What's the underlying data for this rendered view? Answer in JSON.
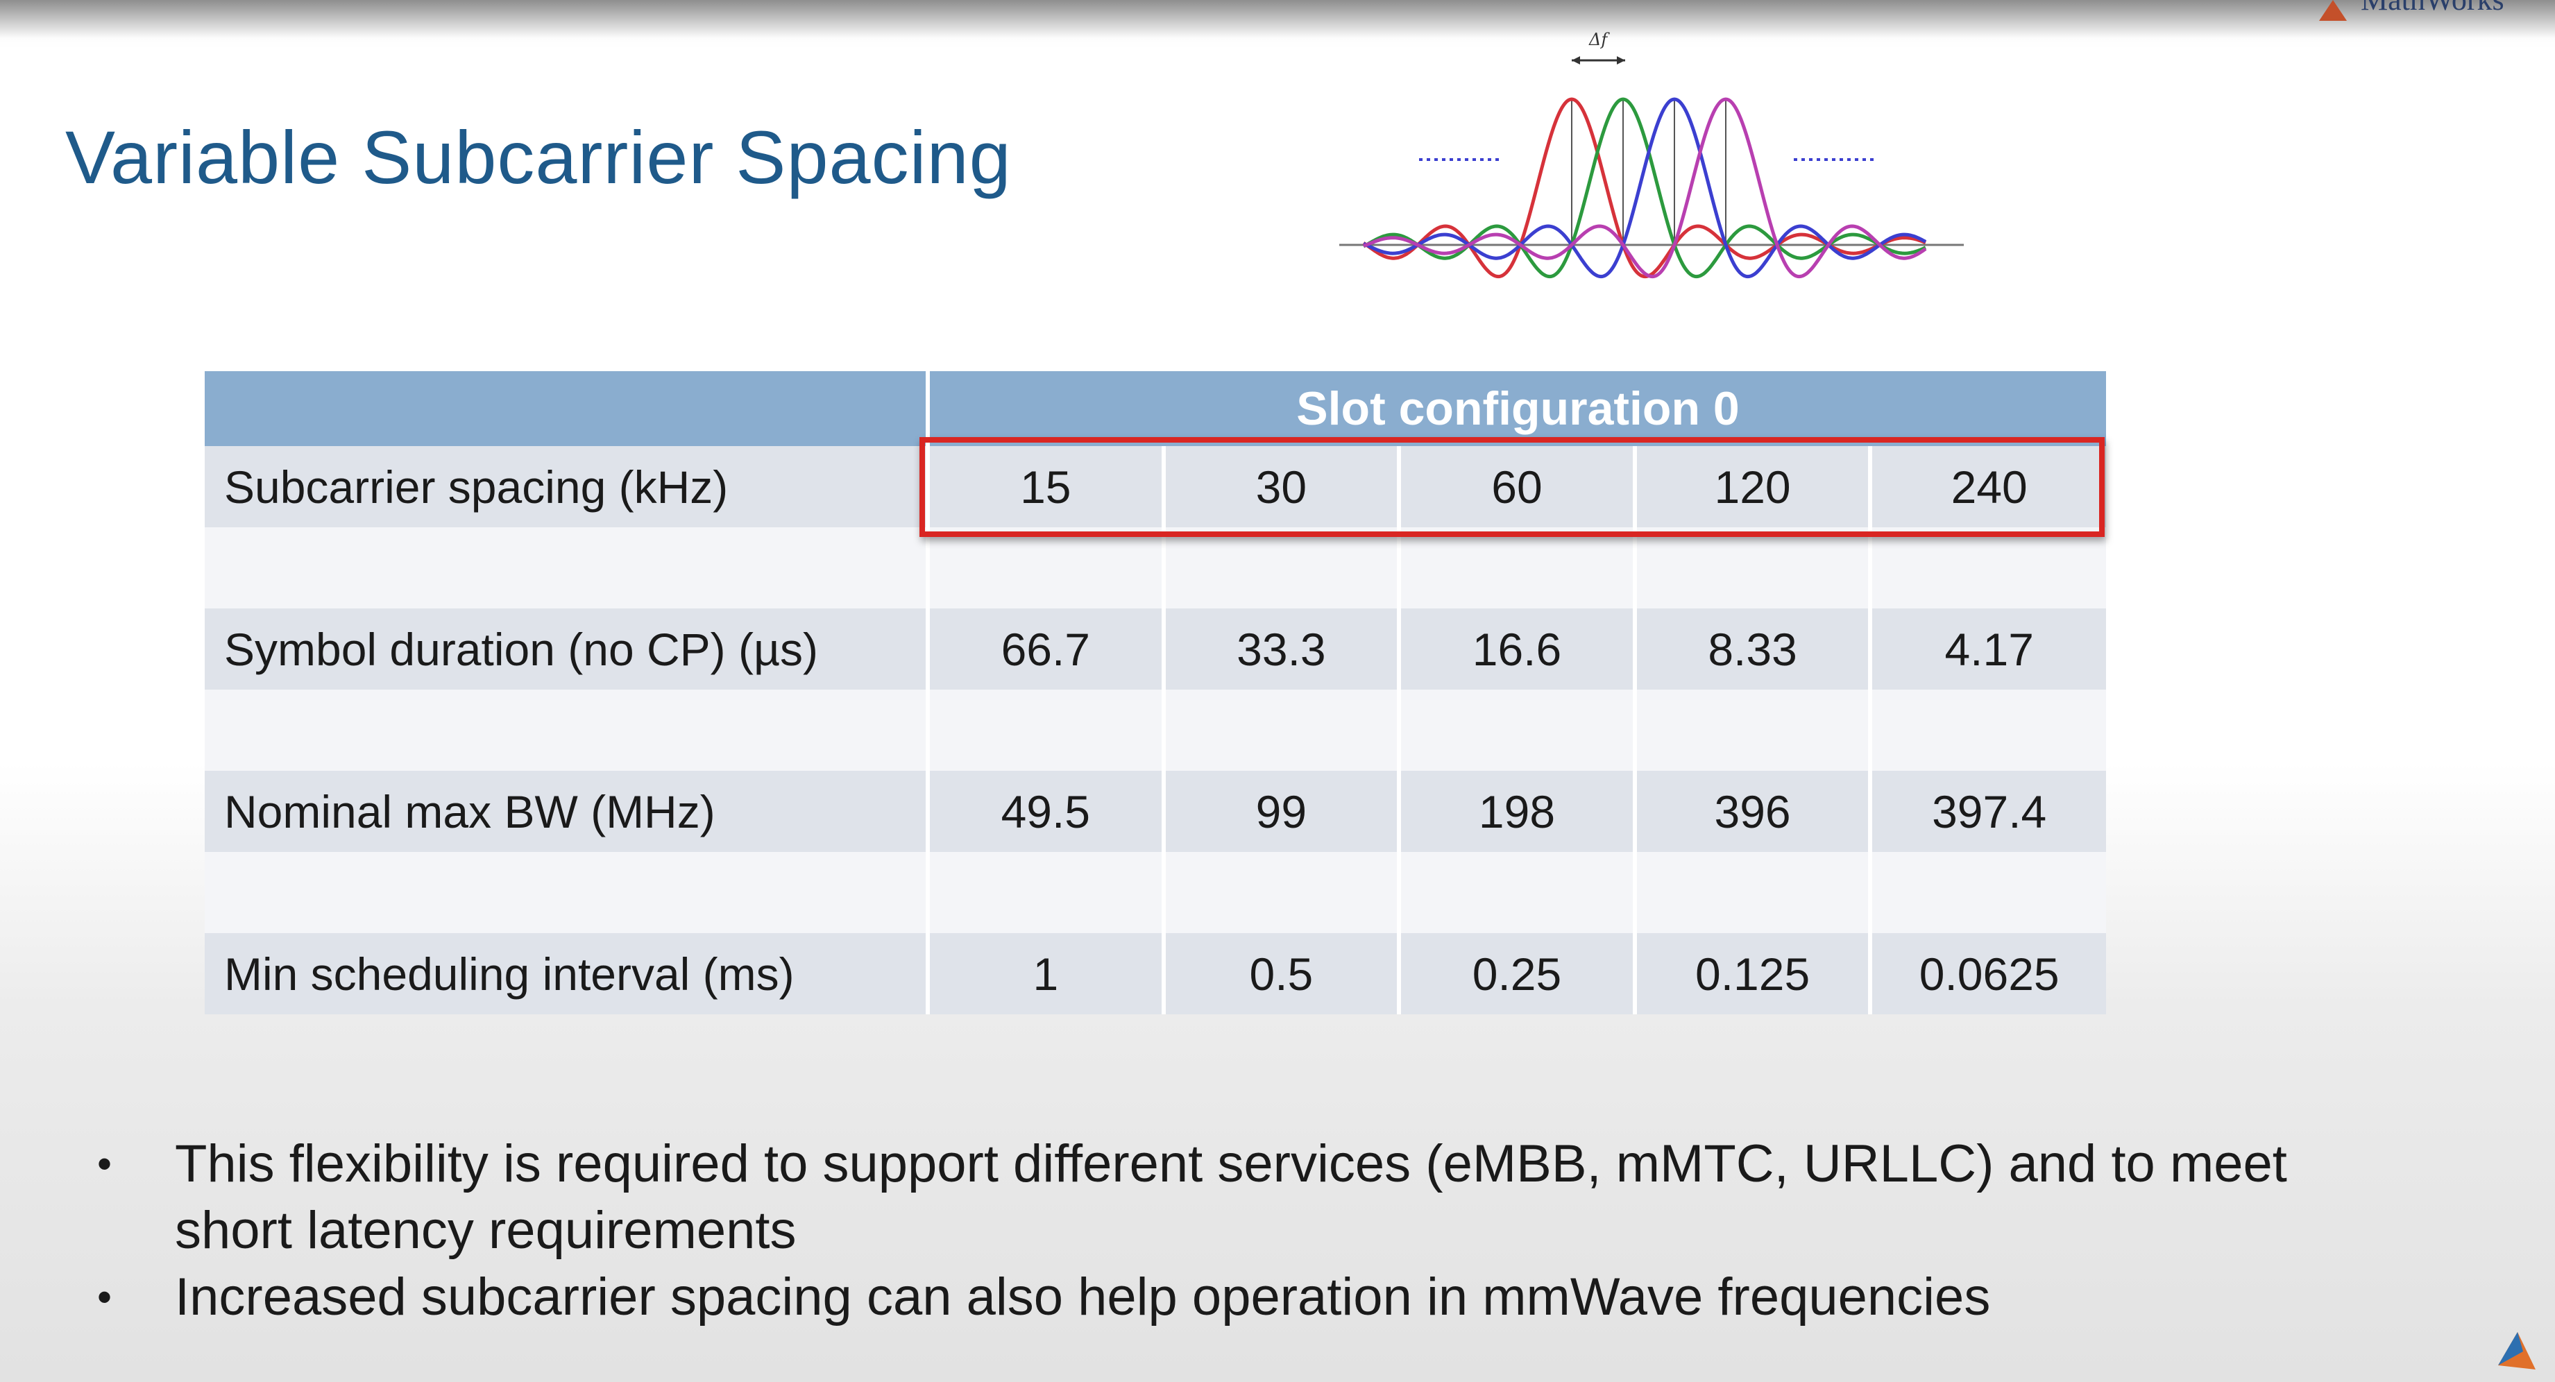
{
  "slide": {
    "title": "Variable Subcarrier Spacing",
    "logo_text": "MathWorks"
  },
  "figure": {
    "delta_label": "Δf",
    "colors": [
      "#d6323a",
      "#2c9a3e",
      "#3b3fd0",
      "#b83fb0"
    ]
  },
  "table": {
    "header": "Slot configuration 0",
    "rows": [
      {
        "label": "Subcarrier spacing (kHz)",
        "values": [
          "15",
          "30",
          "60",
          "120",
          "240"
        ]
      },
      {
        "label": "Symbol duration (no CP) (µs)",
        "values": [
          "66.7",
          "33.3",
          "16.6",
          "8.33",
          "4.17"
        ]
      },
      {
        "label": "Nominal max BW (MHz)",
        "values": [
          "49.5",
          "99",
          "198",
          "396",
          "397.4"
        ]
      },
      {
        "label": "Min scheduling interval (ms)",
        "values": [
          "1",
          "0.5",
          "0.25",
          "0.125",
          "0.0625"
        ]
      }
    ],
    "highlight_color": "#d92622"
  },
  "bullets": [
    {
      "marker": "•",
      "text": "This flexibility is required to support different services (eMBB, mMTC, URLLC) and to meet short latency requirements"
    },
    {
      "marker": "•",
      "text": "Increased subcarrier spacing can also help operation in mmWave frequencies"
    }
  ]
}
